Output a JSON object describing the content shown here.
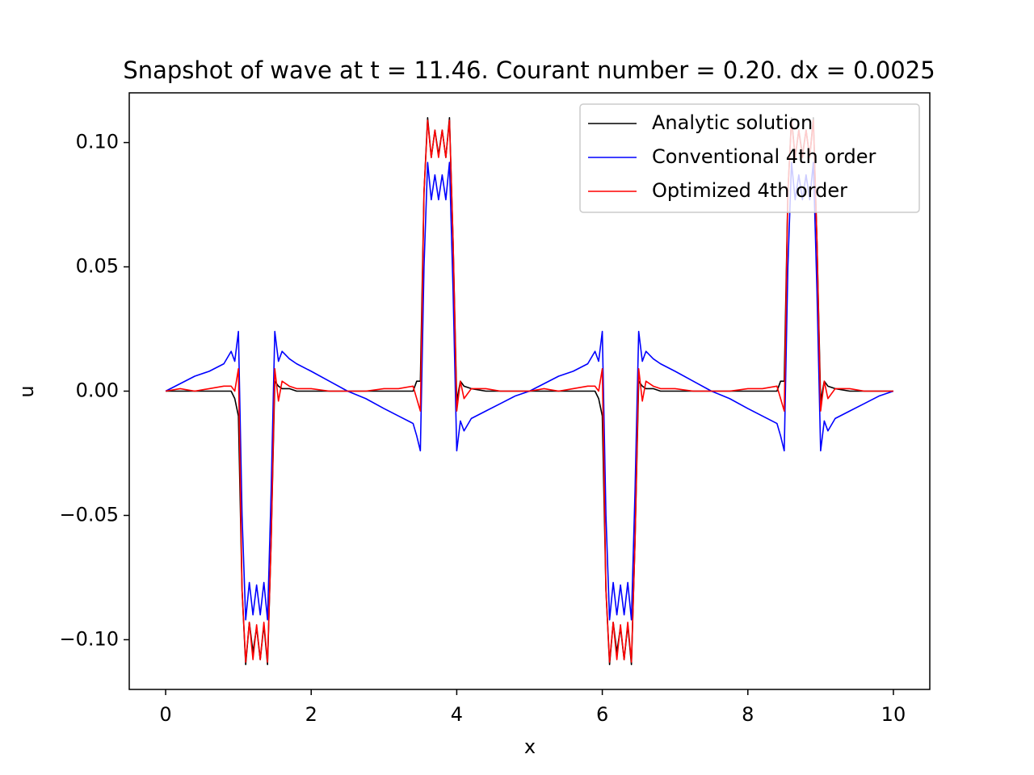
{
  "chart_data": {
    "type": "line",
    "title": "Snapshot of wave at t = 11.46. Courant number = 0.20. dx = 0.0025",
    "x_label": "x",
    "y_label": "u",
    "x": [
      0,
      0.2,
      0.4,
      0.6,
      0.8,
      0.9,
      0.95,
      1,
      1.05,
      1.1,
      1.15,
      1.2,
      1.25,
      1.3,
      1.35,
      1.4,
      1.45,
      1.5,
      1.55,
      1.6,
      1.7,
      1.8,
      2,
      2.25,
      2.5,
      2.75,
      3,
      3.2,
      3.4,
      3.45,
      3.5,
      3.55,
      3.6,
      3.65,
      3.7,
      3.75,
      3.8,
      3.85,
      3.9,
      3.95,
      4,
      4.05,
      4.1,
      4.2,
      4.4,
      4.6,
      4.8,
      5,
      5.2,
      5.4,
      5.6,
      5.8,
      5.9,
      5.95,
      6,
      6.05,
      6.1,
      6.15,
      6.2,
      6.25,
      6.3,
      6.35,
      6.4,
      6.45,
      6.5,
      6.55,
      6.6,
      6.7,
      6.8,
      7,
      7.25,
      7.5,
      7.75,
      8,
      8.2,
      8.4,
      8.45,
      8.5,
      8.55,
      8.6,
      8.65,
      8.7,
      8.75,
      8.8,
      8.85,
      8.9,
      8.95,
      9,
      9.05,
      9.1,
      9.2,
      9.4,
      9.6,
      9.8,
      10
    ],
    "series": [
      {
        "name": "Analytic solution",
        "color": "#000000",
        "values": [
          0,
          0,
          0,
          0,
          0,
          0,
          -0.003,
          -0.01,
          -0.08,
          -0.11,
          -0.093,
          -0.105,
          -0.095,
          -0.108,
          -0.094,
          -0.11,
          -0.06,
          0.004,
          0.002,
          0.001,
          0.001,
          0,
          0,
          0,
          0,
          0,
          0,
          0,
          0,
          0.004,
          0.004,
          0.08,
          0.11,
          0.094,
          0.105,
          0.095,
          0.105,
          0.094,
          0.11,
          0.06,
          -0.004,
          0.004,
          0.002,
          0.001,
          0,
          0,
          0,
          0,
          0,
          0,
          0,
          0,
          0,
          -0.003,
          -0.01,
          -0.08,
          -0.11,
          -0.093,
          -0.105,
          -0.095,
          -0.108,
          -0.094,
          -0.11,
          -0.06,
          0.004,
          0.002,
          0.001,
          0.001,
          0,
          0,
          0,
          0,
          0,
          0,
          0,
          0,
          0.004,
          0.004,
          0.08,
          0.11,
          0.094,
          0.105,
          0.095,
          0.105,
          0.094,
          0.11,
          0.06,
          -0.004,
          0.004,
          0.002,
          0.001,
          0,
          0,
          0,
          0
        ]
      },
      {
        "name": "Conventional 4th order",
        "color": "#0000ff",
        "values": [
          0,
          0.003,
          0.006,
          0.008,
          0.011,
          0.016,
          0.012,
          0.024,
          -0.05,
          -0.092,
          -0.077,
          -0.09,
          -0.078,
          -0.09,
          -0.077,
          -0.092,
          -0.04,
          0.024,
          0.012,
          0.016,
          0.013,
          0.011,
          0.008,
          0.004,
          0,
          -0.003,
          -0.007,
          -0.01,
          -0.013,
          -0.018,
          -0.024,
          0.05,
          0.092,
          0.077,
          0.087,
          0.077,
          0.087,
          0.077,
          0.092,
          0.04,
          -0.024,
          -0.012,
          -0.016,
          -0.011,
          -0.008,
          -0.005,
          -0.002,
          0,
          0.003,
          0.006,
          0.008,
          0.011,
          0.016,
          0.012,
          0.024,
          -0.05,
          -0.092,
          -0.077,
          -0.09,
          -0.078,
          -0.09,
          -0.077,
          -0.092,
          -0.04,
          0.024,
          0.012,
          0.016,
          0.013,
          0.011,
          0.008,
          0.004,
          0,
          -0.003,
          -0.007,
          -0.01,
          -0.013,
          -0.018,
          -0.024,
          0.05,
          0.092,
          0.077,
          0.087,
          0.077,
          0.087,
          0.077,
          0.092,
          0.04,
          -0.024,
          -0.012,
          -0.016,
          -0.011,
          -0.008,
          -0.005,
          -0.002,
          0
        ]
      },
      {
        "name": "Optimized 4th order",
        "color": "#ff0000",
        "values": [
          0,
          0.001,
          0,
          0.001,
          0.002,
          0.002,
          0,
          0.009,
          -0.08,
          -0.109,
          -0.093,
          -0.108,
          -0.094,
          -0.108,
          -0.093,
          -0.109,
          -0.06,
          0.009,
          -0.004,
          0.004,
          0.002,
          0.001,
          0.001,
          0,
          0,
          0,
          0.001,
          0.001,
          0.002,
          -0.003,
          -0.008,
          0.08,
          0.109,
          0.094,
          0.105,
          0.094,
          0.105,
          0.094,
          0.109,
          0.06,
          -0.008,
          0.004,
          -0.003,
          0.001,
          0.001,
          0,
          0,
          0,
          0.001,
          0,
          0.001,
          0.002,
          0.002,
          0,
          0.009,
          -0.08,
          -0.109,
          -0.093,
          -0.108,
          -0.094,
          -0.108,
          -0.093,
          -0.109,
          -0.06,
          0.009,
          -0.004,
          0.004,
          0.002,
          0.001,
          0.001,
          0,
          0,
          0,
          0.001,
          0.001,
          0.002,
          -0.003,
          -0.008,
          0.08,
          0.109,
          0.094,
          0.105,
          0.094,
          0.105,
          0.094,
          0.109,
          0.06,
          -0.008,
          0.004,
          -0.003,
          0.001,
          0.001,
          0,
          0,
          0
        ]
      }
    ],
    "xlim": [
      -0.5,
      10.5
    ],
    "ylim": [
      -0.12,
      0.12
    ],
    "xticks": [
      0,
      2,
      4,
      6,
      8,
      10
    ],
    "yticks": [
      {
        "value": -0.1,
        "label": "−0.10"
      },
      {
        "value": -0.05,
        "label": "−0.05"
      },
      {
        "value": 0,
        "label": "0.00"
      },
      {
        "value": 0.05,
        "label": "0.05"
      },
      {
        "value": 0.1,
        "label": "0.10"
      }
    ],
    "legend": "upper right",
    "grid": false
  }
}
